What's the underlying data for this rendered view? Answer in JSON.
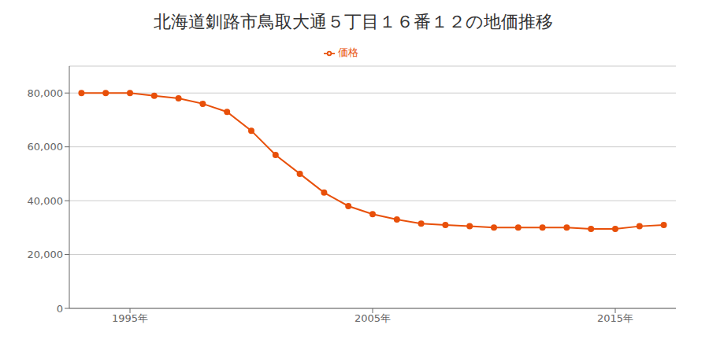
{
  "chart_data": {
    "type": "line",
    "title": "北海道釧路市鳥取大通５丁目１６番１２の地価推移",
    "x": [
      1993,
      1994,
      1995,
      1996,
      1997,
      1998,
      1999,
      2000,
      2001,
      2002,
      2003,
      2004,
      2005,
      2006,
      2007,
      2008,
      2009,
      2010,
      2011,
      2012,
      2013,
      2014,
      2015,
      2016,
      2017
    ],
    "series": [
      {
        "name": "価格",
        "color": "#e8500a",
        "marker": "circle",
        "values": [
          80000,
          80000,
          80000,
          79000,
          78000,
          76000,
          73000,
          66000,
          57000,
          50000,
          43000,
          38000,
          35000,
          33000,
          31500,
          31000,
          30500,
          30000,
          30000,
          30000,
          30000,
          29500,
          29500,
          30500,
          31000
        ]
      }
    ],
    "xlim": [
      1992.5,
      2017.5
    ],
    "xticks": [
      {
        "value": 1995,
        "label": "1995年"
      },
      {
        "value": 2005,
        "label": "2005年"
      },
      {
        "value": 2015,
        "label": "2015年"
      }
    ],
    "ylim": [
      0,
      90000
    ],
    "yticks": [
      0,
      {
        "value": 20000,
        "label": "20,000"
      },
      {
        "value": 40000,
        "label": "40,000"
      },
      {
        "value": 60000,
        "label": "60,000"
      },
      {
        "value": 80000,
        "label": "80,000"
      }
    ],
    "grid": "y",
    "legend": "top"
  }
}
